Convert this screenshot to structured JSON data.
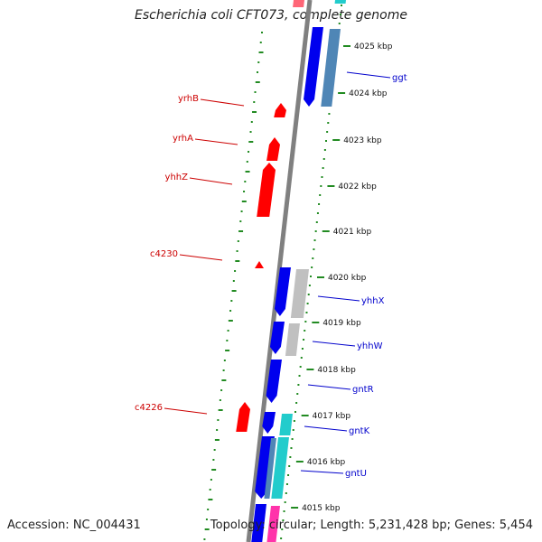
{
  "title": "Escherichia coli CFT073, complete genome",
  "footer": {
    "accession": "Accession: NC_004431",
    "topology": "Topology: circular; Length: 5,231,428 bp; Genes: 5,454"
  },
  "colors": {
    "backbone": "#808080",
    "cds_forward": "#0000ee",
    "cds_reverse": "#ff0000",
    "gc_marks": "#228b22",
    "label_left": "#cc0000",
    "label_right": "#0000cc",
    "homolog_gray": "#c0c0c0",
    "homolog_steel": "#4f86b6",
    "homolog_cyan": "#22cccc",
    "rna_magenta": "#ff33aa"
  },
  "scale": {
    "unit": "kbp",
    "ticks": [
      "4025 kbp",
      "4024 kbp",
      "4023 kbp",
      "4022 kbp",
      "4021 kbp",
      "4020 kbp",
      "4019 kbp",
      "4018 kbp",
      "4017 kbp",
      "4016 kbp",
      "4015 kbp"
    ]
  },
  "genes_reverse_strand": [
    {
      "name": "yrhB"
    },
    {
      "name": "yrhA"
    },
    {
      "name": "yhhZ"
    },
    {
      "name": "c4230"
    },
    {
      "name": "c4226"
    }
  ],
  "genes_forward_strand": [
    {
      "name": "ggt"
    },
    {
      "name": "yhhX"
    },
    {
      "name": "yhhW"
    },
    {
      "name": "gntR"
    },
    {
      "name": "gntK"
    },
    {
      "name": "gntU"
    }
  ]
}
